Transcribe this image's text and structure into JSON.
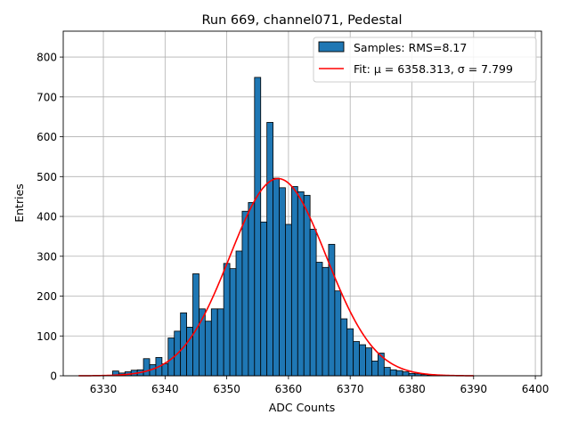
{
  "chart_data": {
    "type": "bar",
    "title": "Run 669, channel071, Pedestal",
    "xlabel": "ADC Counts",
    "ylabel": "Entries",
    "xlim": [
      6323.5,
      6401
    ],
    "ylim": [
      0,
      865
    ],
    "xticks": [
      6330,
      6340,
      6350,
      6360,
      6370,
      6380,
      6390,
      6400
    ],
    "yticks": [
      0,
      100,
      200,
      300,
      400,
      500,
      600,
      700,
      800
    ],
    "grid": true,
    "legend_position": "top-right",
    "histogram": {
      "name": "Samples: RMS=8.17",
      "color": "#1f77b4",
      "bin_width": 1,
      "bins": [
        [
          6332,
          12
        ],
        [
          6333,
          7
        ],
        [
          6334,
          10
        ],
        [
          6335,
          14
        ],
        [
          6336,
          15
        ],
        [
          6337,
          43
        ],
        [
          6338,
          28
        ],
        [
          6339,
          46
        ],
        [
          6340,
          30
        ],
        [
          6341,
          95
        ],
        [
          6342,
          112
        ],
        [
          6343,
          158
        ],
        [
          6344,
          122
        ],
        [
          6345,
          256
        ],
        [
          6346,
          168
        ],
        [
          6347,
          137
        ],
        [
          6348,
          168
        ],
        [
          6349,
          168
        ],
        [
          6350,
          282
        ],
        [
          6351,
          269
        ],
        [
          6352,
          313
        ],
        [
          6353,
          413
        ],
        [
          6354,
          435
        ],
        [
          6355,
          749
        ],
        [
          6356,
          386
        ],
        [
          6357,
          636
        ],
        [
          6358,
          496
        ],
        [
          6359,
          472
        ],
        [
          6360,
          380
        ],
        [
          6361,
          475
        ],
        [
          6362,
          462
        ],
        [
          6363,
          453
        ],
        [
          6364,
          368
        ],
        [
          6365,
          285
        ],
        [
          6366,
          272
        ],
        [
          6367,
          330
        ],
        [
          6368,
          213
        ],
        [
          6369,
          143
        ],
        [
          6370,
          118
        ],
        [
          6371,
          86
        ],
        [
          6372,
          78
        ],
        [
          6373,
          70
        ],
        [
          6374,
          37
        ],
        [
          6375,
          57
        ],
        [
          6376,
          21
        ],
        [
          6377,
          15
        ],
        [
          6378,
          13
        ],
        [
          6379,
          10
        ],
        [
          6380,
          6
        ],
        [
          6381,
          5
        ],
        [
          6382,
          3
        ],
        [
          6383,
          2
        ],
        [
          6384,
          1
        ]
      ]
    },
    "fit": {
      "name": "Fit: μ = 6358.313, σ = 7.799",
      "color": "#ff0000",
      "mu": 6358.313,
      "sigma": 7.799,
      "amplitude": 495,
      "x_range": [
        6326,
        6390
      ]
    }
  }
}
